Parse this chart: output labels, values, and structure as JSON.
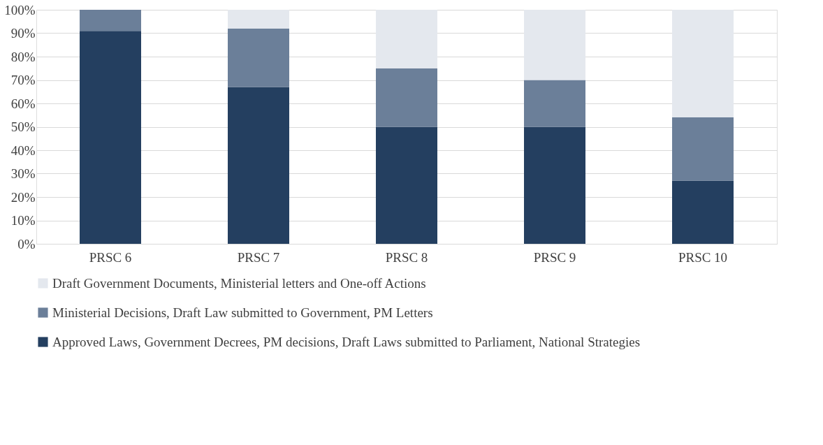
{
  "chart_data": {
    "type": "bar",
    "stacked": true,
    "categories": [
      "PRSC 6",
      "PRSC 7",
      "PRSC 8",
      "PRSC 9",
      "PRSC 10"
    ],
    "series": [
      {
        "name": "Approved Laws, Government Decrees, PM decisions, Draft Laws submitted to Parliament, National Strategies",
        "color": "#243f60",
        "values": [
          91,
          67,
          50,
          50,
          27
        ]
      },
      {
        "name": "Ministerial Decisions, Draft Law submitted to Government, PM Letters",
        "color": "#6b7f99",
        "values": [
          9,
          25,
          25,
          20,
          27
        ]
      },
      {
        "name": "Draft Government Documents, Ministerial letters and One-off Actions",
        "color": "#e4e8ee",
        "values": [
          0,
          8,
          25,
          30,
          46
        ]
      }
    ],
    "ylim": [
      0,
      100
    ],
    "yticks": [
      {
        "value": 0,
        "label": "0%"
      },
      {
        "value": 10,
        "label": "10%"
      },
      {
        "value": 20,
        "label": "20%"
      },
      {
        "value": 30,
        "label": "30%"
      },
      {
        "value": 40,
        "label": "40%"
      },
      {
        "value": 50,
        "label": "50%"
      },
      {
        "value": 60,
        "label": "60%"
      },
      {
        "value": 70,
        "label": "70%"
      },
      {
        "value": 80,
        "label": "80%"
      },
      {
        "value": 90,
        "label": "90%"
      },
      {
        "value": 100,
        "label": "100%"
      }
    ],
    "grid": "y",
    "legend": "bottom"
  }
}
